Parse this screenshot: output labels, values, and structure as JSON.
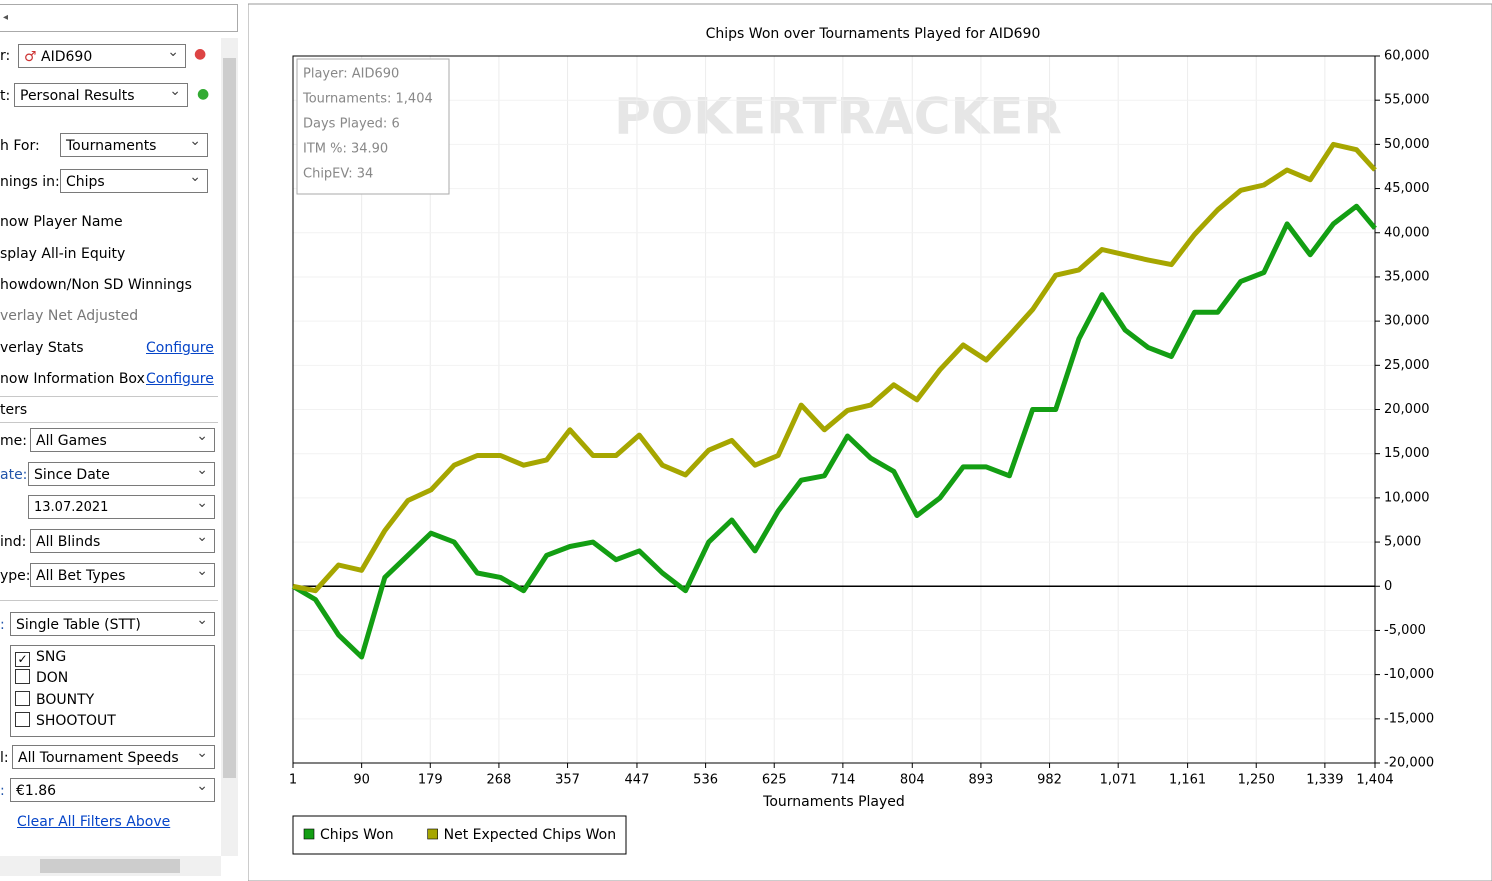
{
  "sidebar": {
    "player": {
      "label": "r:",
      "value": "AID690"
    },
    "report": {
      "label": "t:",
      "value": "Personal Results"
    },
    "graph_for": {
      "label": "h For:",
      "value": "Tournaments"
    },
    "winnings_in": {
      "label": "nings in:",
      "value": "Chips"
    },
    "options": [
      "now Player Name",
      "splay All-in Equity",
      "howdown/Non SD Winnings",
      "verlay Net Adjusted",
      "verlay Stats",
      "now Information Box"
    ],
    "configure_links": [
      "Configure",
      "Configure"
    ],
    "filters_heading": "ters",
    "filters": [
      {
        "label": "me:",
        "value": "All Games"
      },
      {
        "label": "ate:",
        "value": "Since Date"
      },
      {
        "label": "ind:",
        "value": "All Blinds"
      },
      {
        "label": "ype:",
        "value": "All Bet Types"
      },
      {
        "label": ":",
        "value": "Single Table (STT)"
      }
    ],
    "date": "13.07.2021",
    "types": [
      "SNG",
      "DON",
      "BOUNTY",
      "SHOOTOUT"
    ],
    "speed": {
      "label": "l:",
      "value": "All Tournament Speeds"
    },
    "buyin": {
      "label": ":",
      "value": "€1.86"
    },
    "clear": "Clear All Filters Above"
  },
  "chart_data": {
    "type": "line",
    "title": "Chips Won over Tournaments Played for AID690",
    "watermark": "POKERTRACKER",
    "info_box": [
      "Player: AID690",
      "Tournaments: 1,404",
      "Days Played: 6",
      "ITM %: 34.90",
      "ChipEV: 34"
    ],
    "x_label": "Tournaments Played",
    "x": [
      1,
      30,
      60,
      90,
      120,
      150,
      180,
      210,
      240,
      270,
      300,
      330,
      360,
      390,
      420,
      450,
      480,
      510,
      540,
      570,
      600,
      630,
      660,
      690,
      720,
      750,
      780,
      810,
      840,
      870,
      900,
      930,
      960,
      990,
      1020,
      1050,
      1080,
      1110,
      1140,
      1170,
      1200,
      1230,
      1260,
      1290,
      1320,
      1350,
      1380,
      1404
    ],
    "series": [
      {
        "name": "Chips Won",
        "color": "#139e13",
        "values": [
          0,
          -1500,
          -5500,
          -8000,
          1000,
          3500,
          6000,
          5000,
          1500,
          1000,
          -500,
          3500,
          4500,
          5000,
          3000,
          4000,
          1500,
          -500,
          5000,
          7500,
          4000,
          8500,
          12000,
          12500,
          17000,
          14500,
          13000,
          8000,
          10000,
          13500,
          13500,
          12500,
          20000,
          20000,
          28000,
          33000,
          29000,
          27000,
          26000,
          31000,
          31000,
          34500,
          35500,
          41000,
          37500,
          41000,
          43000,
          40500
        ]
      },
      {
        "name": "Net Expected Chips Won",
        "color": "#a6a600",
        "values": [
          0,
          -500,
          2400,
          1800,
          6300,
          9700,
          10900,
          13700,
          14800,
          14800,
          13700,
          14300,
          17700,
          14800,
          14800,
          17100,
          13700,
          12600,
          15400,
          16500,
          13700,
          14800,
          20500,
          17700,
          19900,
          20500,
          22800,
          21100,
          24500,
          27300,
          25600,
          28400,
          31300,
          35200,
          35800,
          38100,
          37500,
          36900,
          36400,
          39800,
          42600,
          44800,
          45400,
          47100,
          46000,
          50000,
          49400,
          47100
        ]
      }
    ],
    "xlim": [
      1,
      1404
    ],
    "xticks": [
      1,
      90,
      179,
      268,
      357,
      447,
      536,
      625,
      714,
      804,
      893,
      982,
      {
        "value": 1071,
        "label": "1,071"
      },
      {
        "value": 1161,
        "label": "1,161"
      },
      {
        "value": 1250,
        "label": "1,250"
      },
      {
        "value": 1339,
        "label": "1,339"
      },
      {
        "value": 1404,
        "label": "1,404"
      }
    ],
    "ylim": [
      -20000,
      60000
    ],
    "yticks": [
      {
        "value": -20000,
        "label": "-20,000"
      },
      {
        "value": -15000,
        "label": "-15,000"
      },
      {
        "value": -10000,
        "label": "-10,000"
      },
      {
        "value": -5000,
        "label": "-5,000"
      },
      0,
      {
        "value": 5000,
        "label": "5,000"
      },
      {
        "value": 10000,
        "label": "10,000"
      },
      {
        "value": 15000,
        "label": "15,000"
      },
      {
        "value": 20000,
        "label": "20,000"
      },
      {
        "value": 25000,
        "label": "25,000"
      },
      {
        "value": 30000,
        "label": "30,000"
      },
      {
        "value": 35000,
        "label": "35,000"
      },
      {
        "value": 40000,
        "label": "40,000"
      },
      {
        "value": 45000,
        "label": "45,000"
      },
      {
        "value": 50000,
        "label": "50,000"
      },
      {
        "value": 55000,
        "label": "55,000"
      },
      {
        "value": 60000,
        "label": "60,000"
      }
    ],
    "grid": true
  }
}
